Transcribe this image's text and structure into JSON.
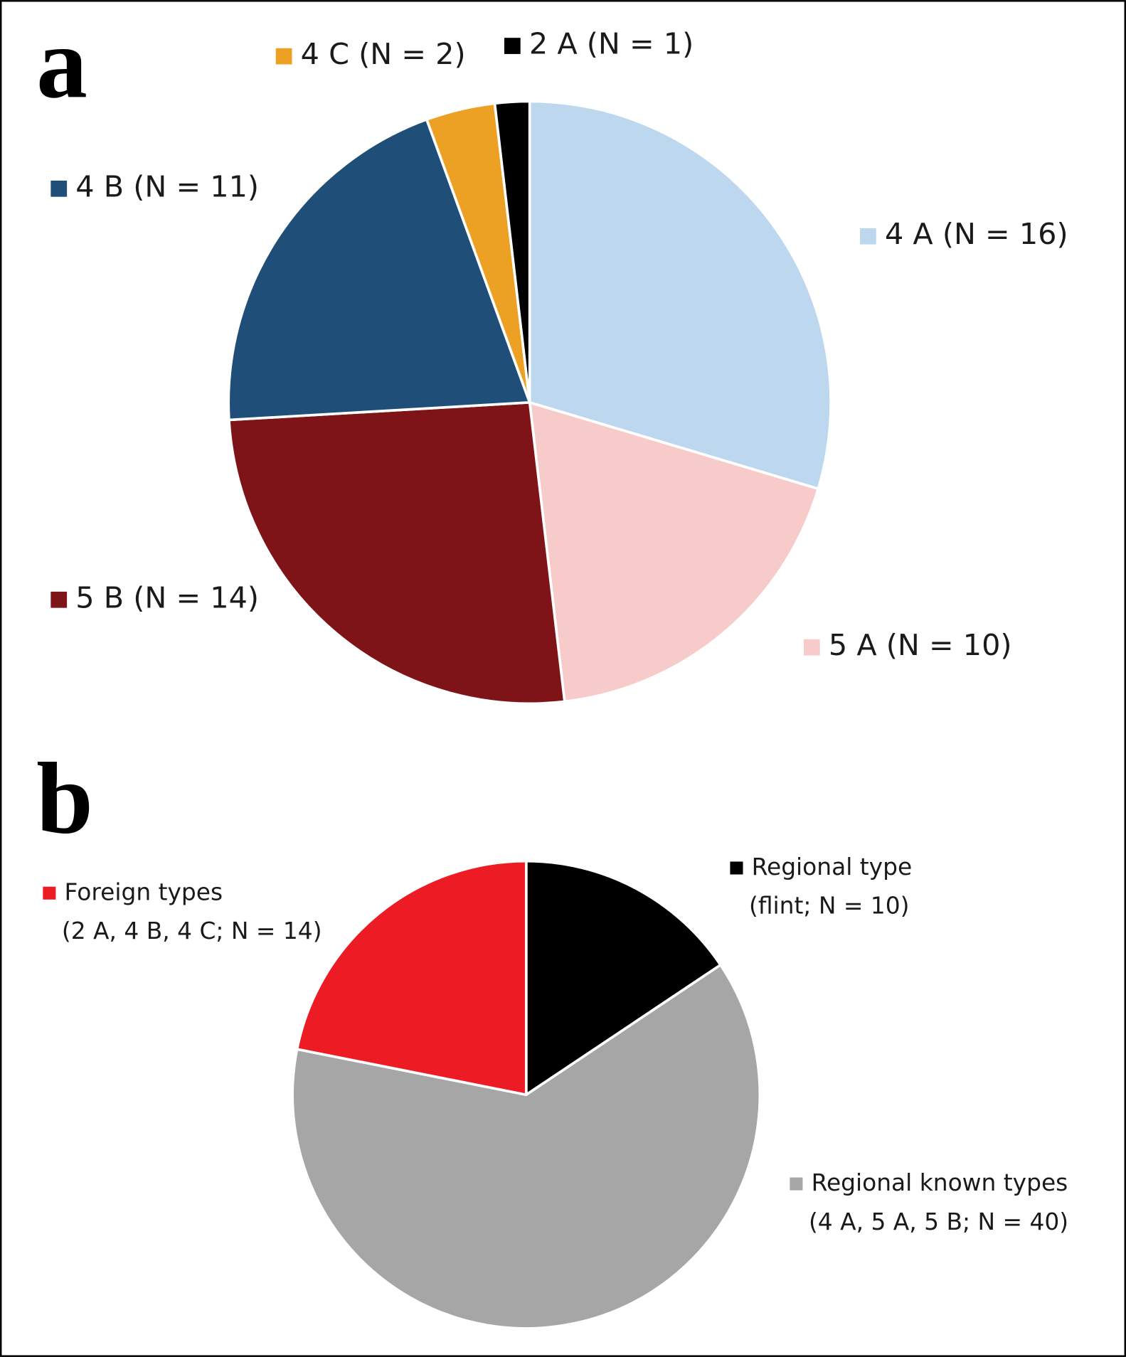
{
  "chart_data": [
    {
      "type": "pie",
      "panel": "a",
      "categories": [
        "4 A (N = 16)",
        "5 A (N = 10)",
        "5 B (N = 14)",
        "4 B (N = 11)",
        "4 C (N = 2)",
        "2 A (N = 1)"
      ],
      "values": [
        16,
        10,
        14,
        11,
        2,
        1
      ],
      "colors": [
        "#bdd7ee",
        "#f8cbcb",
        "#7f1418",
        "#1f4e79",
        "#eda124",
        "#000000"
      ]
    },
    {
      "type": "pie",
      "panel": "b",
      "categories": [
        [
          "Regional type",
          "(flint; N = 10)"
        ],
        [
          "Regional known types",
          "(4 A, 5 A, 5 B; N = 40)"
        ],
        [
          "Foreign types",
          "(2 A, 4 B, 4 C; N = 14)"
        ]
      ],
      "values": [
        10,
        40,
        14
      ],
      "colors": [
        "#000000",
        "#a6a6a6",
        "#ed1c24"
      ]
    }
  ]
}
